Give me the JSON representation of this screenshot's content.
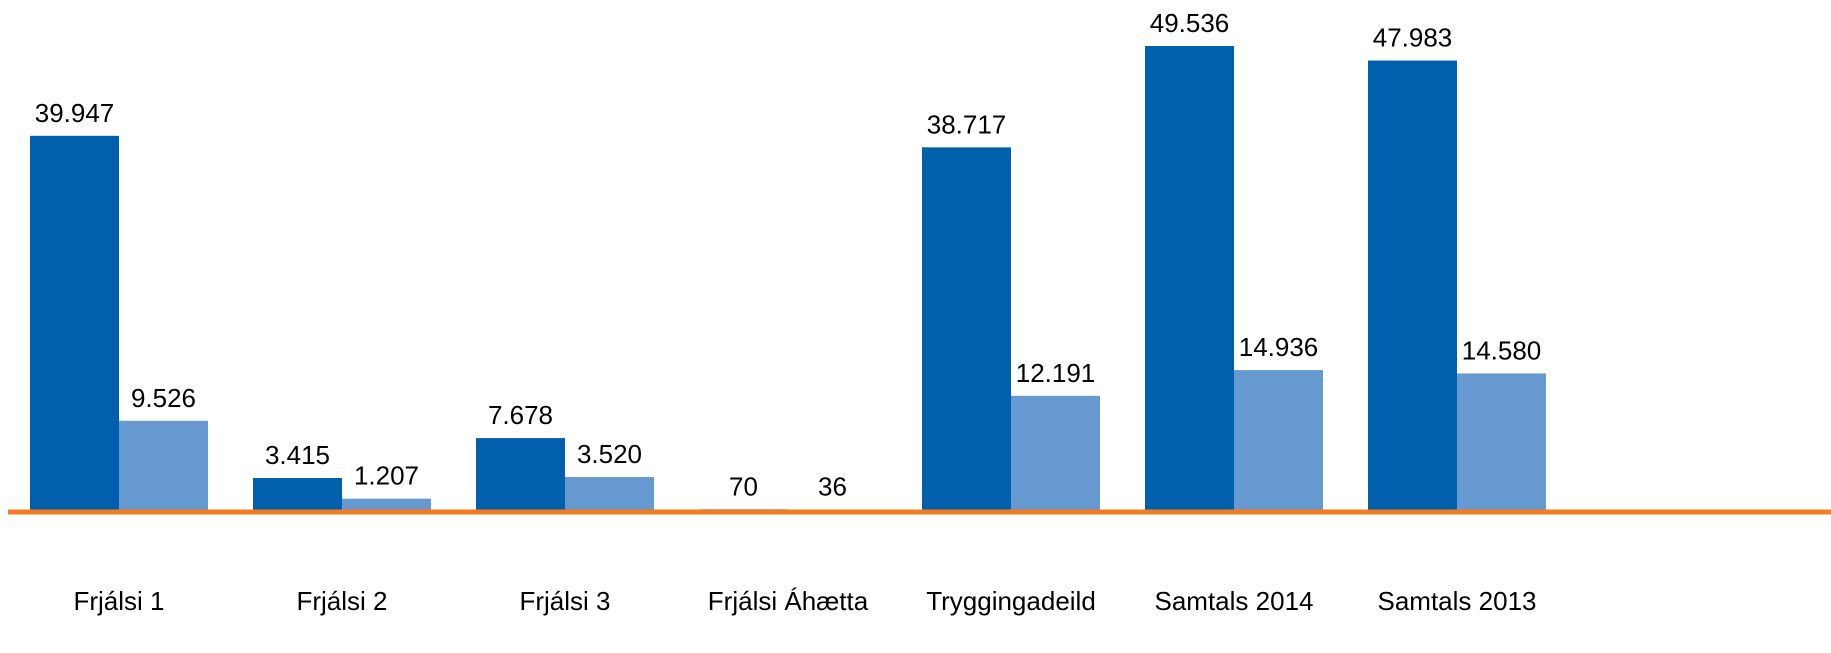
{
  "chart_data": {
    "type": "bar",
    "categories": [
      "Frjálsi 1",
      "Frjálsi 2",
      "Frjálsi 3",
      "Frjálsi Áhætta",
      "Tryggingadeild",
      "Samtals 2014",
      "Samtals 2013"
    ],
    "series": [
      {
        "color": "#0060ad",
        "values": [
          39947,
          3415,
          7678,
          70,
          38717,
          49536,
          47983
        ],
        "value_labels": [
          "39.947",
          "3.415",
          "7.678",
          "70",
          "38.717",
          "49.536",
          "47.983"
        ]
      },
      {
        "color": "#6699d0",
        "values": [
          9526,
          1207,
          3520,
          36,
          12191,
          14936,
          14580
        ],
        "value_labels": [
          "9.526",
          "1.207",
          "3.520",
          "36",
          "12.191",
          "14.936",
          "14.580"
        ]
      }
    ],
    "baseline_color": "#f47b20"
  }
}
